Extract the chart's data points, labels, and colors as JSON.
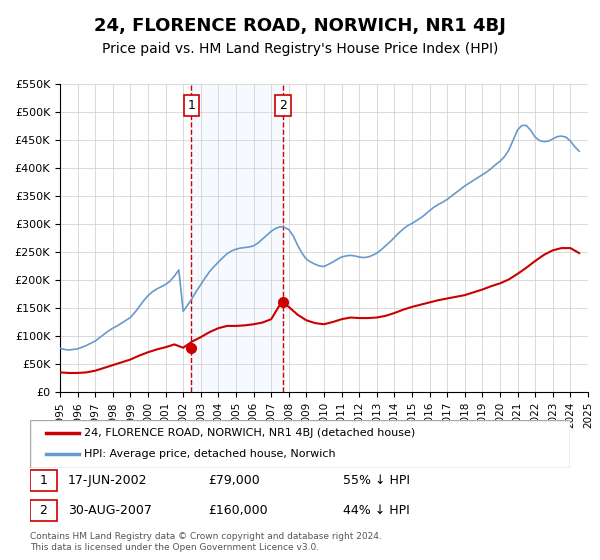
{
  "title": "24, FLORENCE ROAD, NORWICH, NR1 4BJ",
  "subtitle": "Price paid vs. HM Land Registry's House Price Index (HPI)",
  "title_fontsize": 13,
  "subtitle_fontsize": 10,
  "ylim": [
    0,
    550000
  ],
  "yticks": [
    0,
    50000,
    100000,
    150000,
    200000,
    250000,
    300000,
    350000,
    400000,
    450000,
    500000,
    550000
  ],
  "ytick_labels": [
    "£0",
    "£50K",
    "£100K",
    "£150K",
    "£200K",
    "£250K",
    "£300K",
    "£350K",
    "£400K",
    "£450K",
    "£500K",
    "£550K"
  ],
  "xlim_start": 1995,
  "xlim_end": 2025,
  "xticks": [
    1995,
    1996,
    1997,
    1998,
    1999,
    2000,
    2001,
    2002,
    2003,
    2004,
    2005,
    2006,
    2007,
    2008,
    2009,
    2010,
    2011,
    2012,
    2013,
    2014,
    2015,
    2016,
    2017,
    2018,
    2019,
    2020,
    2021,
    2022,
    2023,
    2024,
    2025
  ],
  "background_color": "#ffffff",
  "plot_bg_color": "#ffffff",
  "grid_color": "#cccccc",
  "sale1_x": 2002.46,
  "sale1_y": 79000,
  "sale1_label": "1",
  "sale1_date": "17-JUN-2002",
  "sale1_price": "£79,000",
  "sale1_hpi": "55% ↓ HPI",
  "sale2_x": 2007.66,
  "sale2_y": 160000,
  "sale2_label": "2",
  "sale2_date": "30-AUG-2007",
  "sale2_price": "£160,000",
  "sale2_hpi": "44% ↓ HPI",
  "red_line_color": "#cc0000",
  "blue_line_color": "#6699cc",
  "sale_marker_color": "#cc0000",
  "shade_color": "#ddeeff",
  "legend_label_red": "24, FLORENCE ROAD, NORWICH, NR1 4BJ (detached house)",
  "legend_label_blue": "HPI: Average price, detached house, Norwich",
  "footer1": "Contains HM Land Registry data © Crown copyright and database right 2024.",
  "footer2": "This data is licensed under the Open Government Licence v3.0.",
  "hpi_x": [
    1995.0,
    1995.25,
    1995.5,
    1995.75,
    1996.0,
    1996.25,
    1996.5,
    1996.75,
    1997.0,
    1997.25,
    1997.5,
    1997.75,
    1998.0,
    1998.25,
    1998.5,
    1998.75,
    1999.0,
    1999.25,
    1999.5,
    1999.75,
    2000.0,
    2000.25,
    2000.5,
    2000.75,
    2001.0,
    2001.25,
    2001.5,
    2001.75,
    2002.0,
    2002.25,
    2002.5,
    2002.75,
    2003.0,
    2003.25,
    2003.5,
    2003.75,
    2004.0,
    2004.25,
    2004.5,
    2004.75,
    2005.0,
    2005.25,
    2005.5,
    2005.75,
    2006.0,
    2006.25,
    2006.5,
    2006.75,
    2007.0,
    2007.25,
    2007.5,
    2007.75,
    2008.0,
    2008.25,
    2008.5,
    2008.75,
    2009.0,
    2009.25,
    2009.5,
    2009.75,
    2010.0,
    2010.25,
    2010.5,
    2010.75,
    2011.0,
    2011.25,
    2011.5,
    2011.75,
    2012.0,
    2012.25,
    2012.5,
    2012.75,
    2013.0,
    2013.25,
    2013.5,
    2013.75,
    2014.0,
    2014.25,
    2014.5,
    2014.75,
    2015.0,
    2015.25,
    2015.5,
    2015.75,
    2016.0,
    2016.25,
    2016.5,
    2016.75,
    2017.0,
    2017.25,
    2017.5,
    2017.75,
    2018.0,
    2018.25,
    2018.5,
    2018.75,
    2019.0,
    2019.25,
    2019.5,
    2019.75,
    2020.0,
    2020.25,
    2020.5,
    2020.75,
    2021.0,
    2021.25,
    2021.5,
    2021.75,
    2022.0,
    2022.25,
    2022.5,
    2022.75,
    2023.0,
    2023.25,
    2023.5,
    2023.75,
    2024.0,
    2024.25,
    2024.5
  ],
  "hpi_y": [
    78000,
    76000,
    75000,
    76000,
    77000,
    80000,
    83000,
    87000,
    91000,
    97000,
    103000,
    109000,
    114000,
    118000,
    123000,
    128000,
    133000,
    142000,
    152000,
    163000,
    172000,
    179000,
    184000,
    188000,
    192000,
    198000,
    207000,
    218000,
    144000,
    155000,
    167000,
    180000,
    192000,
    204000,
    215000,
    224000,
    232000,
    240000,
    247000,
    252000,
    255000,
    257000,
    258000,
    259000,
    261000,
    266000,
    273000,
    280000,
    287000,
    292000,
    295000,
    294000,
    290000,
    279000,
    262000,
    248000,
    237000,
    232000,
    228000,
    225000,
    224000,
    228000,
    232000,
    237000,
    241000,
    243000,
    244000,
    243000,
    241000,
    240000,
    241000,
    244000,
    248000,
    254000,
    261000,
    268000,
    276000,
    284000,
    291000,
    297000,
    301000,
    306000,
    311000,
    317000,
    324000,
    330000,
    335000,
    339000,
    344000,
    350000,
    356000,
    362000,
    368000,
    373000,
    378000,
    383000,
    388000,
    393000,
    399000,
    406000,
    412000,
    420000,
    432000,
    450000,
    468000,
    476000,
    476000,
    467000,
    455000,
    449000,
    447000,
    448000,
    452000,
    456000,
    457000,
    455000,
    448000,
    438000,
    430000
  ],
  "red_x": [
    1995.0,
    1995.5,
    1996.0,
    1996.5,
    1997.0,
    1997.5,
    1998.0,
    1998.5,
    1999.0,
    1999.5,
    2000.0,
    2000.5,
    2001.0,
    2001.5,
    2002.0,
    2002.5,
    2003.0,
    2003.5,
    2004.0,
    2004.5,
    2005.0,
    2005.5,
    2006.0,
    2006.5,
    2007.0,
    2007.5,
    2007.66,
    2008.0,
    2008.5,
    2009.0,
    2009.5,
    2010.0,
    2010.5,
    2011.0,
    2011.5,
    2012.0,
    2012.5,
    2013.0,
    2013.5,
    2014.0,
    2014.5,
    2015.0,
    2015.5,
    2016.0,
    2016.5,
    2017.0,
    2017.5,
    2018.0,
    2018.5,
    2019.0,
    2019.5,
    2020.0,
    2020.5,
    2021.0,
    2021.5,
    2022.0,
    2022.5,
    2023.0,
    2023.5,
    2024.0,
    2024.5
  ],
  "red_y": [
    35000,
    34000,
    34000,
    35000,
    38000,
    43000,
    48000,
    53000,
    58000,
    65000,
    71000,
    76000,
    80000,
    85000,
    79000,
    90000,
    98000,
    107000,
    114000,
    118000,
    118000,
    119000,
    121000,
    124000,
    130000,
    156000,
    160000,
    152000,
    138000,
    128000,
    123000,
    121000,
    125000,
    130000,
    133000,
    132000,
    132000,
    133000,
    136000,
    141000,
    147000,
    152000,
    156000,
    160000,
    164000,
    167000,
    170000,
    173000,
    178000,
    183000,
    189000,
    194000,
    201000,
    211000,
    222000,
    234000,
    245000,
    253000,
    257000,
    257000,
    248000
  ]
}
